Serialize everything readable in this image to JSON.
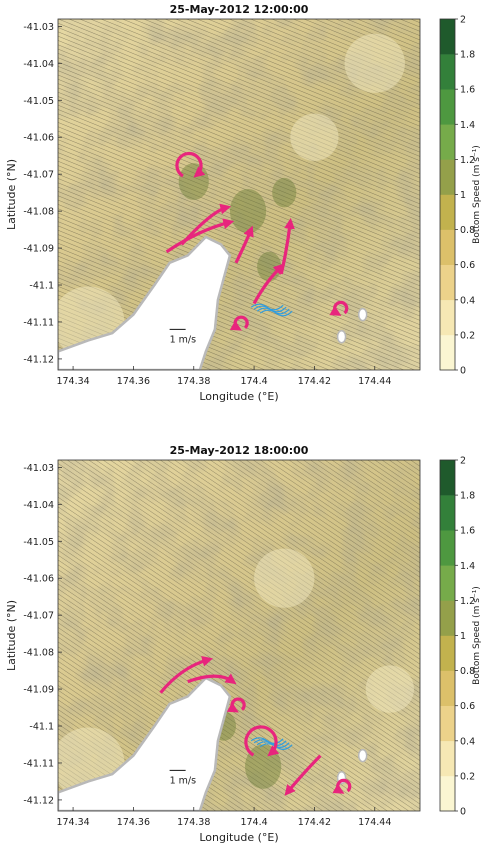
{
  "chart_data": [
    {
      "type": "heatmap",
      "title": "25-May-2012 12:00:00",
      "xlabel": "Longitude (°E)",
      "ylabel": "Latitude (°N)",
      "x_ticks": [
        "174.34",
        "174.36",
        "174.38",
        "174.4",
        "174.42",
        "174.44"
      ],
      "y_ticks": [
        "-41.03",
        "-41.04",
        "-41.05",
        "-41.06",
        "-41.07",
        "-41.08",
        "-41.09",
        "-41.1",
        "-41.11",
        "-41.12"
      ],
      "xlim": [
        174.335,
        174.455
      ],
      "ylim": [
        -41.123,
        -41.028
      ],
      "scale_label": "1  m/s",
      "colorbar": {
        "label": "Bottom Speed (m s⁻¹)",
        "ticks": [
          "0",
          "0.2",
          "0.4",
          "0.6",
          "0.8",
          "1",
          "1.2",
          "1.4",
          "1.6",
          "1.8",
          "2"
        ],
        "colors": [
          "#fbf6d2",
          "#f6e8b4",
          "#ecd28a",
          "#dcc06a",
          "#c2b24e",
          "#94a04a",
          "#76ab4a",
          "#4e9840",
          "#33803a",
          "#1f5a2c"
        ]
      },
      "eddies": [
        {
          "lon": 174.379,
          "lat": -41.073,
          "radius": 0.004,
          "direction": "clockwise"
        },
        {
          "lon": 174.396,
          "lat": -41.113,
          "radius": 0.002,
          "direction": "counterclockwise"
        },
        {
          "lon": 174.429,
          "lat": -41.109,
          "radius": 0.002,
          "direction": "counterclockwise"
        }
      ],
      "flow_arrows": [
        [
          [
            174.371,
            -41.091
          ],
          [
            174.382,
            -41.085
          ],
          [
            174.392,
            -41.083
          ]
        ],
        [
          [
            174.376,
            -41.089
          ],
          [
            174.386,
            -41.08
          ],
          [
            174.391,
            -41.079
          ]
        ],
        [
          [
            174.394,
            -41.094
          ],
          [
            174.397,
            -41.089
          ],
          [
            174.399,
            -41.085
          ]
        ],
        [
          [
            174.4,
            -41.105
          ],
          [
            174.404,
            -41.099
          ],
          [
            174.409,
            -41.095
          ]
        ],
        [
          [
            174.409,
            -41.097
          ],
          [
            174.411,
            -41.09
          ],
          [
            174.412,
            -41.083
          ]
        ]
      ]
    },
    {
      "type": "heatmap",
      "title": "25-May-2012 18:00:00",
      "xlabel": "Longitude (°E)",
      "ylabel": "Latitude (°N)",
      "x_ticks": [
        "174.34",
        "174.36",
        "174.38",
        "174.4",
        "174.42",
        "174.44"
      ],
      "y_ticks": [
        "-41.03",
        "-41.04",
        "-41.05",
        "-41.06",
        "-41.07",
        "-41.08",
        "-41.09",
        "-41.1",
        "-41.11",
        "-41.12"
      ],
      "xlim": [
        174.335,
        174.455
      ],
      "ylim": [
        -41.123,
        -41.028
      ],
      "scale_label": "1  m/s",
      "colorbar": {
        "label": "Bottom Speed (m s⁻¹)",
        "ticks": [
          "0",
          "0.2",
          "0.4",
          "0.6",
          "0.8",
          "1",
          "1.2",
          "1.4",
          "1.6",
          "1.8",
          "2"
        ],
        "colors": [
          "#fbf6d2",
          "#f6e8b4",
          "#ecd28a",
          "#dcc06a",
          "#c2b24e",
          "#94a04a",
          "#76ab4a",
          "#4e9840",
          "#33803a",
          "#1f5a2c"
        ]
      },
      "eddies": [
        {
          "lon": 174.395,
          "lat": -41.097,
          "radius": 0.002,
          "direction": "counterclockwise"
        },
        {
          "lon": 174.403,
          "lat": -41.111,
          "radius": 0.005,
          "direction": "clockwise"
        },
        {
          "lon": 174.43,
          "lat": -41.119,
          "radius": 0.002,
          "direction": "counterclockwise"
        }
      ],
      "flow_arrows": [
        [
          [
            174.369,
            -41.091
          ],
          [
            174.376,
            -41.084
          ],
          [
            174.385,
            -41.082
          ]
        ],
        [
          [
            174.378,
            -41.088
          ],
          [
            174.388,
            -41.085
          ],
          [
            174.393,
            -41.088
          ]
        ],
        [
          [
            174.422,
            -41.108
          ],
          [
            174.416,
            -41.113
          ],
          [
            174.411,
            -41.118
          ]
        ]
      ]
    }
  ]
}
